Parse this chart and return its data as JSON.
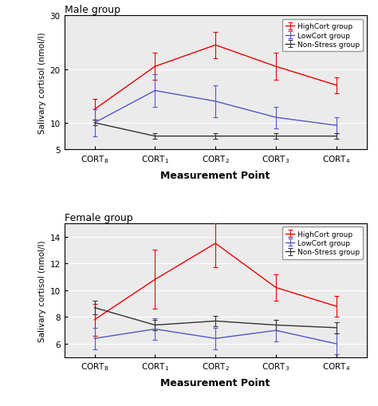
{
  "x": [
    0,
    1,
    2,
    3,
    4
  ],
  "male": {
    "title": "Male group",
    "ylabel": "Salivary cortisol (nmol/l)",
    "ylim": [
      5,
      30
    ],
    "yticks": [
      5,
      10,
      20,
      30
    ],
    "HighCort": {
      "y": [
        12.5,
        20.5,
        24.5,
        20.5,
        17.0
      ],
      "yerr": [
        2.0,
        2.5,
        2.5,
        2.5,
        1.5
      ],
      "color": "#EE0000"
    },
    "LowCort": {
      "y": [
        10.0,
        16.0,
        14.0,
        11.0,
        9.5
      ],
      "yerr": [
        2.5,
        3.0,
        3.0,
        2.0,
        1.5
      ],
      "color": "#5555CC"
    },
    "NonStress": {
      "y": [
        10.0,
        7.5,
        7.5,
        7.5,
        7.5
      ],
      "yerr": [
        0.5,
        0.5,
        0.5,
        0.5,
        0.5
      ],
      "color": "#333333"
    }
  },
  "female": {
    "title": "Female group",
    "ylabel": "Salivary cortisol (nmol/l)",
    "ylim": [
      5,
      15
    ],
    "yticks": [
      6,
      8,
      10,
      12,
      14
    ],
    "HighCort": {
      "y": [
        7.8,
        10.8,
        13.5,
        10.2,
        8.8
      ],
      "yerr": [
        1.2,
        2.2,
        1.8,
        1.0,
        0.8
      ],
      "color": "#EE0000"
    },
    "LowCort": {
      "y": [
        6.4,
        7.1,
        6.4,
        7.0,
        6.0
      ],
      "yerr": [
        0.8,
        0.8,
        0.8,
        0.8,
        0.8
      ],
      "color": "#5555CC"
    },
    "NonStress": {
      "y": [
        8.7,
        7.4,
        7.7,
        7.4,
        7.2
      ],
      "yerr": [
        0.5,
        0.4,
        0.4,
        0.4,
        0.4
      ],
      "color": "#333333"
    }
  },
  "legend_labels": [
    "HighCort group",
    "LowCort group",
    "Non-Stress group"
  ],
  "xlabel": "Measurement Point",
  "plot_bg": "#EBEBEB",
  "fig_bg": "#FFFFFF"
}
